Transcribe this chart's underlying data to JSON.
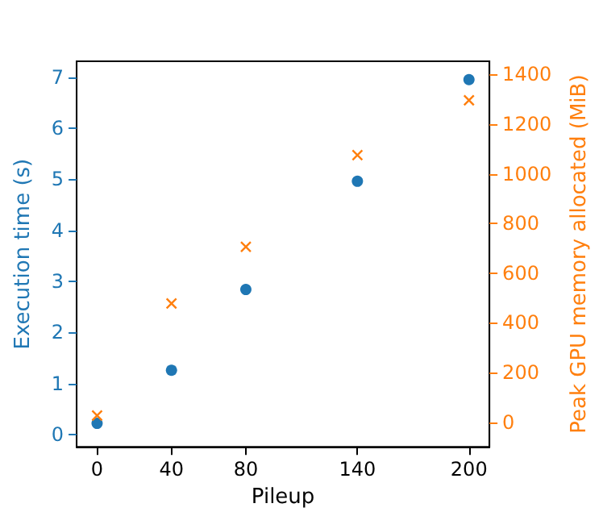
{
  "chart_data": {
    "type": "scatter",
    "xlabel": "Pileup",
    "ylabel": "Execution time (s)",
    "y2label": "Peak GPU memory allocated (MiB)",
    "x": [
      0,
      40,
      80,
      140,
      200
    ],
    "series": [
      {
        "color": "#1f77b4",
        "marker": "circle",
        "values": [
          0.22,
          1.26,
          2.84,
          4.96,
          6.95
        ]
      },
      {
        "color": "#ff7f0e",
        "marker": "cross",
        "axis": "y2",
        "values": [
          27,
          478,
          706,
          1075,
          1296
        ]
      }
    ],
    "xlim": [
      -11,
      211
    ],
    "xticks": [
      0,
      40,
      80,
      140,
      200
    ],
    "ylim": [
      -0.24,
      7.31
    ],
    "yticks": [
      0,
      1,
      2,
      3,
      4,
      5,
      6,
      7
    ],
    "y2lim": [
      -99,
      1453
    ],
    "y2ticks": [
      0,
      200,
      400,
      600,
      800,
      1000,
      1200,
      1400
    ]
  }
}
